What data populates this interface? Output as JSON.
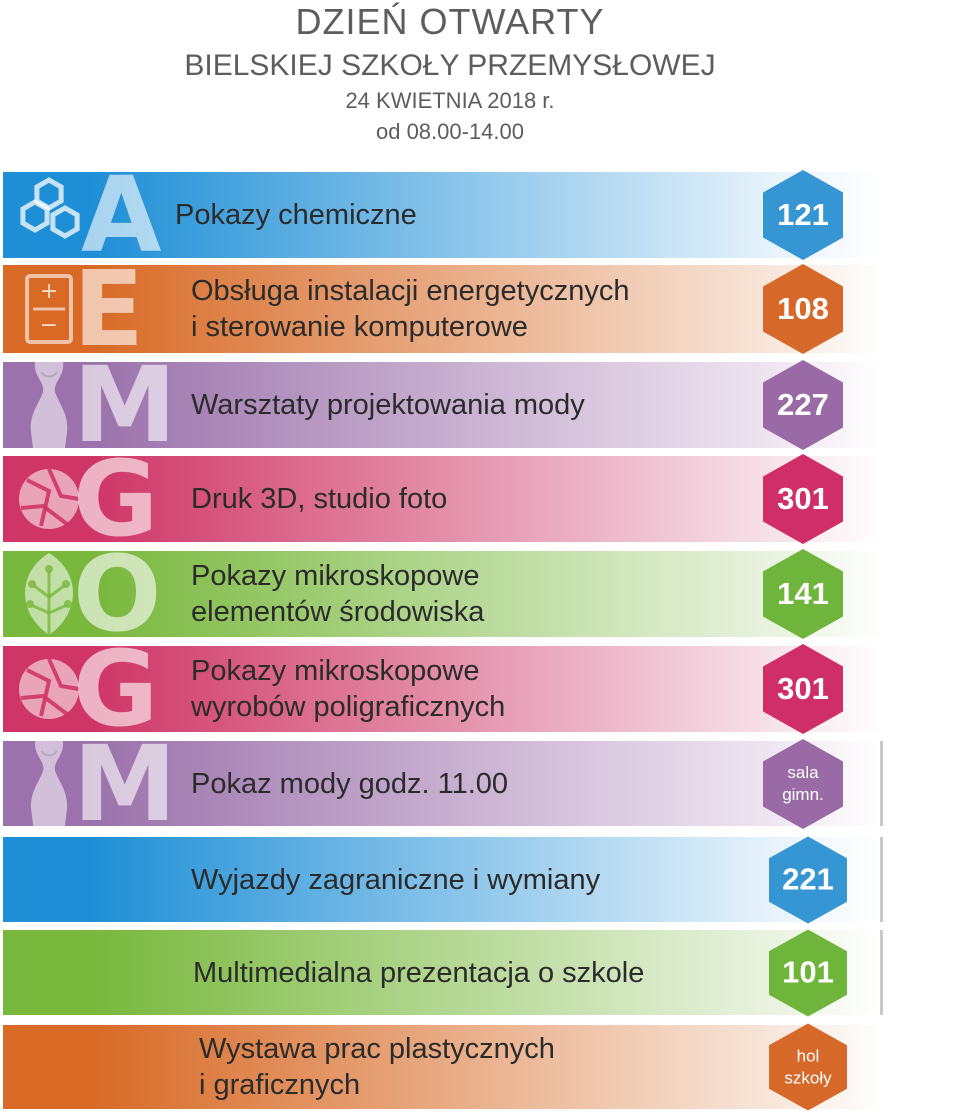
{
  "header": {
    "title": "DZIEŃ OTWARTY",
    "subtitle": "BIELSKIEJ SZKOŁY PRZEMYSŁOWEJ",
    "date": "24 KWIETNIA 2018 r.",
    "time": "od 08.00-14.00"
  },
  "colors": {
    "blue": "#1e8fd6",
    "orange": "#d86a26",
    "purple": "#9b72ab",
    "pink": "#cf3566",
    "green": "#78b83c",
    "text": "#2b2b2b",
    "header_text": "#5d5d5d"
  },
  "rows": [
    {
      "letter": "A",
      "icon": "molecules-icon",
      "label": "Pokazy chemiczne",
      "room": "121",
      "color": "blue"
    },
    {
      "letter": "E",
      "icon": "battery-icon",
      "label": "Obsługa instalacji energetycznych\ni sterowanie komputerowe",
      "room": "108",
      "color": "orange"
    },
    {
      "letter": "M",
      "icon": "dress-form-icon",
      "label": "Warsztaty projektowania mody",
      "room": "227",
      "color": "purple"
    },
    {
      "letter": "G",
      "icon": "camera-aperture-icon",
      "label": "Druk 3D, studio foto",
      "room": "301",
      "color": "pink"
    },
    {
      "letter": "O",
      "icon": "leaf-icon",
      "label": "Pokazy mikroskopowe\nelementów środowiska",
      "room": "141",
      "color": "green"
    },
    {
      "letter": "G",
      "icon": "camera-aperture-icon",
      "label": "Pokazy mikroskopowe\nwyrobów poligraficznych",
      "room": "301",
      "color": "pink"
    },
    {
      "letter": "M",
      "icon": "dress-form-icon",
      "label": "Pokaz mody godz. 11.00",
      "room": "sala\ngimn.",
      "color": "purple"
    },
    {
      "letter": "",
      "icon": "",
      "label": "Wyjazdy zagraniczne i wymiany",
      "room": "221",
      "color": "blue"
    },
    {
      "letter": "",
      "icon": "",
      "label": "Multimedialna prezentacja o szkole",
      "room": "101",
      "color": "green"
    },
    {
      "letter": "",
      "icon": "",
      "label": "Wystawa prac plastycznych\ni graficznych",
      "room": "hol\nszkoły",
      "color": "orange"
    }
  ]
}
